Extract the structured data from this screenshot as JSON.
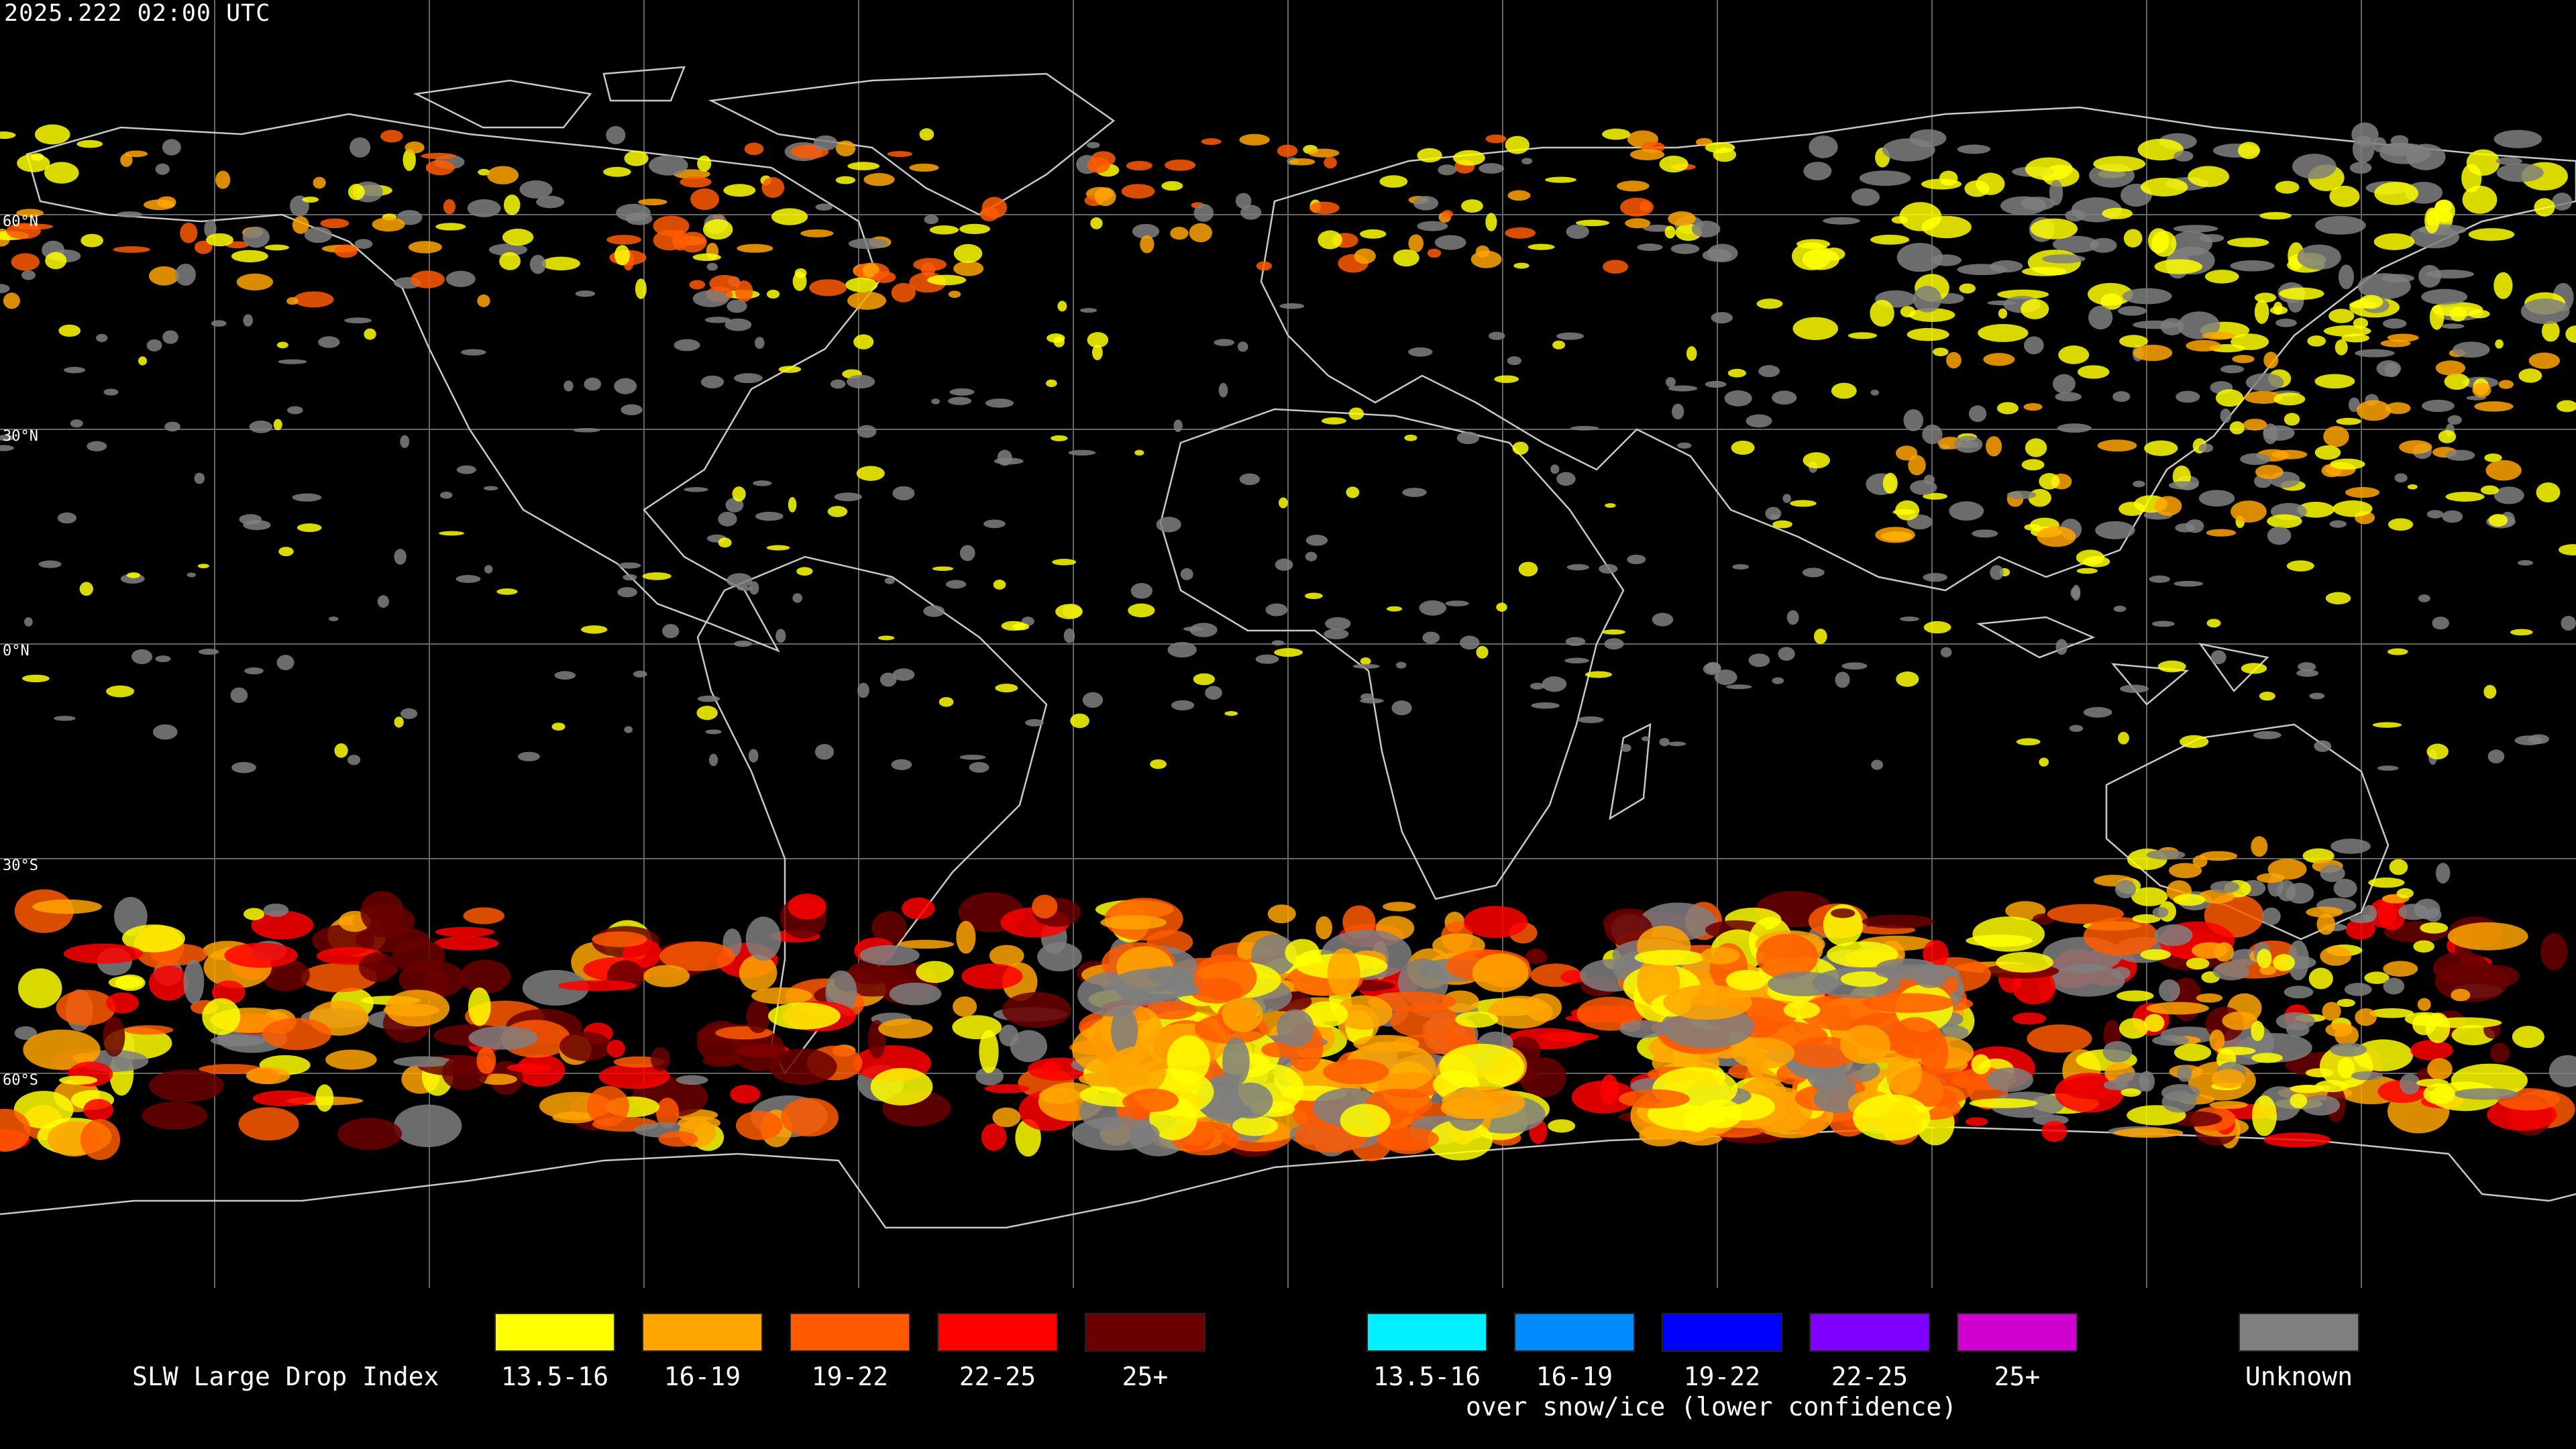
{
  "header": {
    "timestamp": "2025.222 02:00 UTC"
  },
  "map": {
    "latitude_labels": [
      "60°N",
      "30°N",
      "0°N",
      "30°S",
      "60°S"
    ]
  },
  "legend": {
    "title": "SLW Large Drop Index",
    "primary": [
      {
        "label": "13.5-16",
        "color": "#ffff00"
      },
      {
        "label": "16-19",
        "color": "#ffa500"
      },
      {
        "label": "19-22",
        "color": "#ff5a00"
      },
      {
        "label": "22-25",
        "color": "#ff0000"
      },
      {
        "label": "25+",
        "color": "#6b0000"
      }
    ],
    "snow_ice": [
      {
        "label": "13.5-16",
        "color": "#00f0ff"
      },
      {
        "label": "16-19",
        "color": "#008cff"
      },
      {
        "label": "19-22",
        "color": "#0000ff"
      },
      {
        "label": "22-25",
        "color": "#8000ff"
      },
      {
        "label": "25+",
        "color": "#d000d0"
      }
    ],
    "snow_ice_caption": "over snow/ice (lower confidence)",
    "unknown": {
      "label": "Unknown",
      "color": "#7f7f7f"
    }
  }
}
